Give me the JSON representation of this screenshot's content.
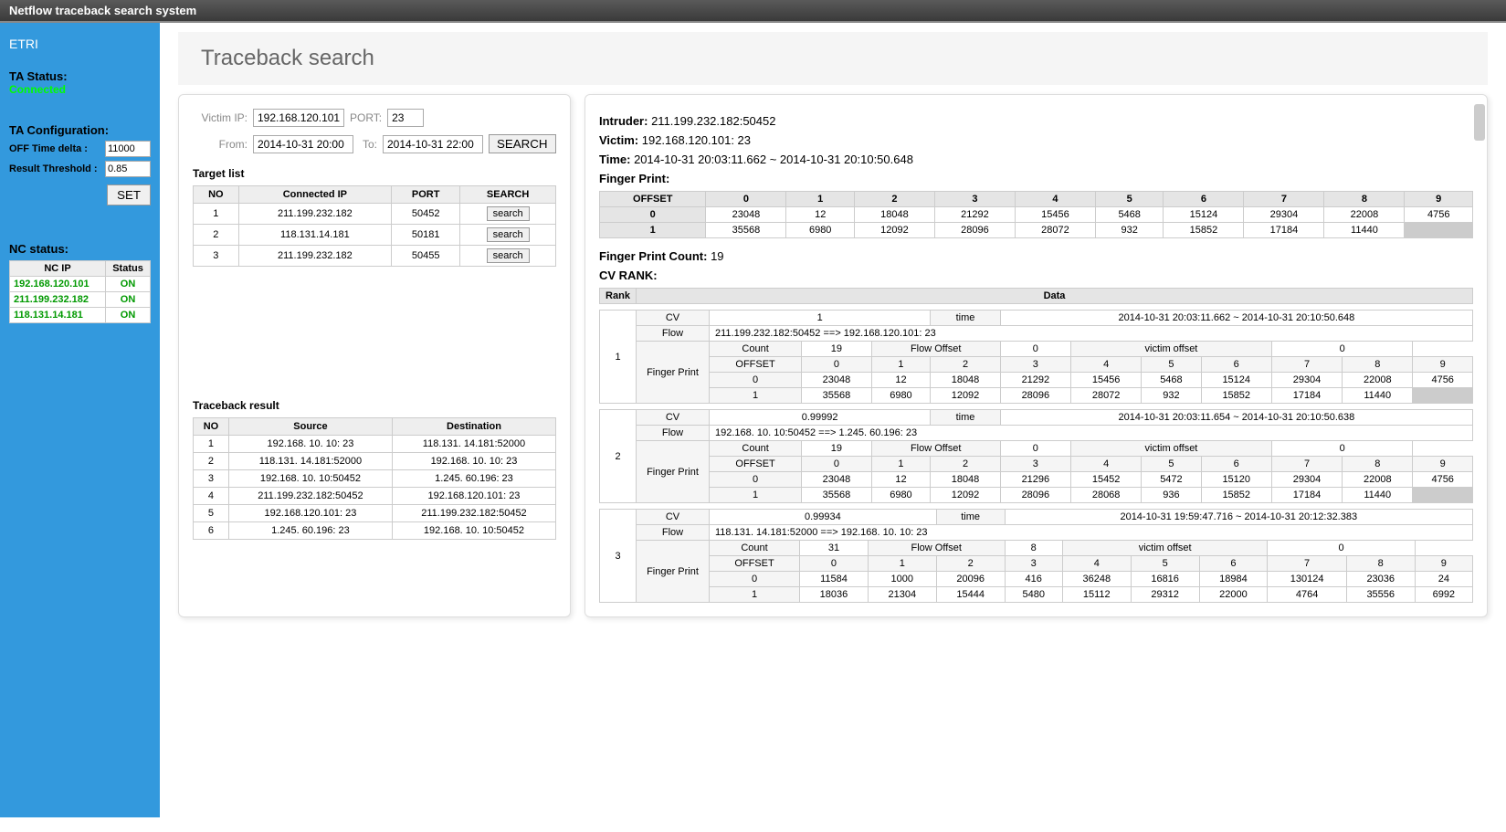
{
  "header": {
    "title": "Netflow traceback search system"
  },
  "sidebar": {
    "org": "ETRI",
    "ta_status_label": "TA Status:",
    "ta_status_value": "Connected",
    "ta_config_label": "TA Configuration:",
    "off_time_label": "OFF Time delta :",
    "off_time_value": "11000",
    "threshold_label": "Result Threshold :",
    "threshold_value": "0.85",
    "set_btn": "SET",
    "nc_status_label": "NC status:",
    "nc_headers": [
      "NC IP",
      "Status"
    ],
    "nc_rows": [
      {
        "ip": "192.168.120.101",
        "status": "ON"
      },
      {
        "ip": "211.199.232.182",
        "status": "ON"
      },
      {
        "ip": "118.131.14.181",
        "status": "ON"
      }
    ]
  },
  "page": {
    "title": "Traceback search"
  },
  "search": {
    "victim_ip_label": "Victim IP:",
    "victim_ip": "192.168.120.101",
    "port_label": "PORT:",
    "port": "23",
    "from_label": "From:",
    "from": "2014-10-31 20:00",
    "to_label": "To:",
    "to": "2014-10-31 22:00",
    "search_btn": "SEARCH"
  },
  "target_list": {
    "title": "Target list",
    "headers": [
      "NO",
      "Connected IP",
      "PORT",
      "SEARCH"
    ],
    "rows": [
      {
        "no": "1",
        "ip": "211.199.232.182",
        "port": "50452"
      },
      {
        "no": "2",
        "ip": "118.131.14.181",
        "port": "50181"
      },
      {
        "no": "3",
        "ip": "211.199.232.182",
        "port": "50455"
      }
    ],
    "search_btn": "search"
  },
  "traceback": {
    "title": "Traceback result",
    "headers": [
      "NO",
      "Source",
      "Destination"
    ],
    "rows": [
      {
        "no": "1",
        "src": "192.168. 10. 10: 23",
        "dst": "118.131. 14.181:52000"
      },
      {
        "no": "2",
        "src": "118.131. 14.181:52000",
        "dst": "192.168. 10. 10: 23"
      },
      {
        "no": "3",
        "src": "192.168. 10. 10:50452",
        "dst": "1.245. 60.196: 23"
      },
      {
        "no": "4",
        "src": "211.199.232.182:50452",
        "dst": "192.168.120.101: 23"
      },
      {
        "no": "5",
        "src": "192.168.120.101: 23",
        "dst": "211.199.232.182:50452"
      },
      {
        "no": "6",
        "src": "1.245. 60.196: 23",
        "dst": "192.168. 10. 10:50452"
      }
    ]
  },
  "detail": {
    "intruder_label": "Intruder:",
    "intruder": "211.199.232.182:50452",
    "victim_label": "Victim:",
    "victim": "192.168.120.101: 23",
    "time_label": "Time:",
    "time": "2014-10-31 20:03:11.662 ~ 2014-10-31 20:10:50.648",
    "fp_label": "Finger Print:",
    "fp_offset_hdr": "OFFSET",
    "fp_cols": [
      "0",
      "1",
      "2",
      "3",
      "4",
      "5",
      "6",
      "7",
      "8",
      "9"
    ],
    "fp_rows": [
      {
        "off": "0",
        "v": [
          "23048",
          "12",
          "18048",
          "21292",
          "15456",
          "5468",
          "15124",
          "29304",
          "22008",
          "4756"
        ]
      },
      {
        "off": "1",
        "v": [
          "35568",
          "6980",
          "12092",
          "28096",
          "28072",
          "932",
          "15852",
          "17184",
          "11440",
          ""
        ]
      }
    ],
    "fp_count_label": "Finger Print Count:",
    "fp_count": "19",
    "cv_label": "CV RANK:",
    "cv_headers": [
      "Rank",
      "Data"
    ],
    "cv_sub": {
      "cv": "CV",
      "time": "time",
      "flow": "Flow",
      "fp": "Finger Print",
      "count": "Count",
      "flow_off": "Flow Offset",
      "vic_off": "victim offset",
      "offset": "OFFSET"
    },
    "ranks": [
      {
        "rank": "1",
        "cv": "1",
        "time": "2014-10-31 20:03:11.662 ~ 2014-10-31 20:10:50.648",
        "flow": "211.199.232.182:50452 ==> 192.168.120.101: 23",
        "count": "19",
        "flow_off": "0",
        "vic_off": "0",
        "fp_cols": [
          "0",
          "1",
          "2",
          "3",
          "4",
          "5",
          "6",
          "7",
          "8",
          "9"
        ],
        "fp0": [
          "23048",
          "12",
          "18048",
          "21292",
          "15456",
          "5468",
          "15124",
          "29304",
          "22008",
          "4756"
        ],
        "fp1": [
          "35568",
          "6980",
          "12092",
          "28096",
          "28072",
          "932",
          "15852",
          "17184",
          "11440",
          ""
        ]
      },
      {
        "rank": "2",
        "cv": "0.99992",
        "time": "2014-10-31 20:03:11.654 ~ 2014-10-31 20:10:50.638",
        "flow": "192.168. 10. 10:50452 ==> 1.245. 60.196: 23",
        "count": "19",
        "flow_off": "0",
        "vic_off": "0",
        "fp_cols": [
          "0",
          "1",
          "2",
          "3",
          "4",
          "5",
          "6",
          "7",
          "8",
          "9"
        ],
        "fp0": [
          "23048",
          "12",
          "18048",
          "21296",
          "15452",
          "5472",
          "15120",
          "29304",
          "22008",
          "4756"
        ],
        "fp1": [
          "35568",
          "6980",
          "12092",
          "28096",
          "28068",
          "936",
          "15852",
          "17184",
          "11440",
          ""
        ]
      },
      {
        "rank": "3",
        "cv": "0.99934",
        "time": "2014-10-31 19:59:47.716 ~ 2014-10-31 20:12:32.383",
        "flow": "118.131. 14.181:52000 ==> 192.168. 10. 10: 23",
        "count": "31",
        "flow_off": "8",
        "vic_off": "0",
        "fp_cols": [
          "0",
          "1",
          "2",
          "3",
          "4",
          "5",
          "6",
          "7",
          "8",
          "9"
        ],
        "fp0": [
          "11584",
          "1000",
          "20096",
          "416",
          "36248",
          "16816",
          "18984",
          "130124",
          "23036",
          "24"
        ],
        "fp1": [
          "18036",
          "21304",
          "15444",
          "5480",
          "15112",
          "29312",
          "22000",
          "4764",
          "35556",
          "6992"
        ]
      }
    ]
  }
}
